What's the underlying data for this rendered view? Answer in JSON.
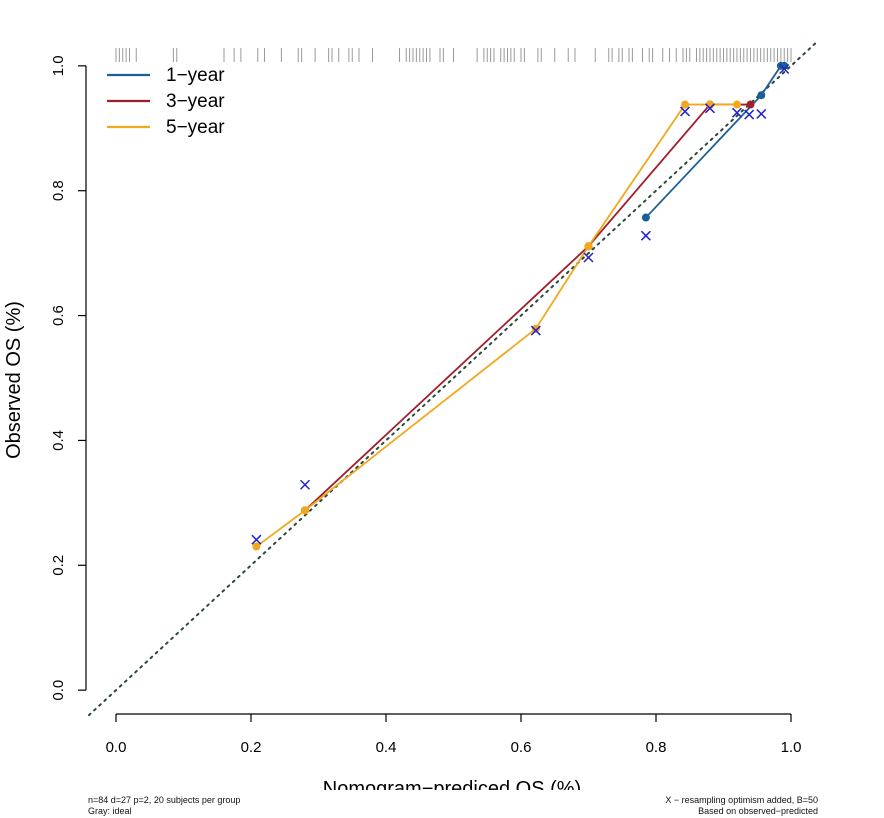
{
  "chart_data": {
    "type": "line",
    "xlabel": "Nomogram−prediced OS (%)",
    "ylabel": "Observed OS (%)",
    "xlim": [
      -0.04,
      1.04
    ],
    "ylim": [
      -0.035,
      1.035
    ],
    "x_ticks": [
      "0.0",
      "0.2",
      "0.4",
      "0.6",
      "0.8",
      "1.0"
    ],
    "y_ticks": [
      "0.0",
      "0.2",
      "0.4",
      "0.6",
      "0.8",
      "1.0"
    ],
    "legend_position": "top-left",
    "ideal_line": true,
    "colors": {
      "1-year": "#1b5f96",
      "3-year": "#a11d2b",
      "5-year": "#f0a81c",
      "cross": "#2323c8"
    },
    "series": [
      {
        "name": "1−year",
        "color": "#1b5f96",
        "x": [
          0.785,
          0.956,
          0.985,
          0.99
        ],
        "y": [
          0.757,
          0.953,
          1.0,
          1.0
        ]
      },
      {
        "name": "3−year",
        "color": "#a11d2b",
        "x": [
          0.28,
          0.7,
          0.88,
          0.94
        ],
        "y": [
          0.288,
          0.711,
          0.938,
          0.938
        ]
      },
      {
        "name": "5−year",
        "color": "#f0a81c",
        "x": [
          0.208,
          0.28,
          0.622,
          0.7,
          0.843,
          0.88,
          0.92
        ],
        "y": [
          0.23,
          0.288,
          0.579,
          0.711,
          0.938,
          0.938,
          0.938
        ]
      }
    ],
    "crosses": {
      "x": [
        0.208,
        0.28,
        0.622,
        0.7,
        0.785,
        0.843,
        0.88,
        0.92,
        0.938,
        0.956,
        0.99
      ],
      "y": [
        0.241,
        0.329,
        0.576,
        0.693,
        0.728,
        0.927,
        0.932,
        0.925,
        0.922,
        0.923,
        0.995
      ]
    },
    "rug": [
      0.0,
      0.005,
      0.01,
      0.015,
      0.02,
      0.03,
      0.085,
      0.09,
      0.16,
      0.175,
      0.185,
      0.21,
      0.22,
      0.245,
      0.27,
      0.275,
      0.295,
      0.315,
      0.32,
      0.33,
      0.345,
      0.35,
      0.36,
      0.38,
      0.42,
      0.43,
      0.435,
      0.44,
      0.445,
      0.45,
      0.455,
      0.46,
      0.465,
      0.48,
      0.485,
      0.5,
      0.535,
      0.545,
      0.55,
      0.555,
      0.56,
      0.57,
      0.575,
      0.58,
      0.585,
      0.59,
      0.6,
      0.605,
      0.625,
      0.63,
      0.65,
      0.67,
      0.68,
      0.71,
      0.73,
      0.735,
      0.745,
      0.75,
      0.76,
      0.765,
      0.78,
      0.79,
      0.795,
      0.81,
      0.82,
      0.83,
      0.84,
      0.845,
      0.85,
      0.86,
      0.865,
      0.87,
      0.875,
      0.88,
      0.885,
      0.89,
      0.895,
      0.9,
      0.905,
      0.91,
      0.915,
      0.92,
      0.925,
      0.93,
      0.935,
      0.94,
      0.945,
      0.95,
      0.955,
      0.96,
      0.965,
      0.97,
      0.975,
      0.98,
      0.985,
      0.99,
      0.995,
      1.0
    ]
  },
  "footnotes": {
    "left_line1": "n=84 d=27 p=2, 20 subjects per group",
    "left_line2": "Gray: ideal",
    "right_line1": "X − resampling optimism added, B=50",
    "right_line2": "Based on observed−predicted"
  }
}
